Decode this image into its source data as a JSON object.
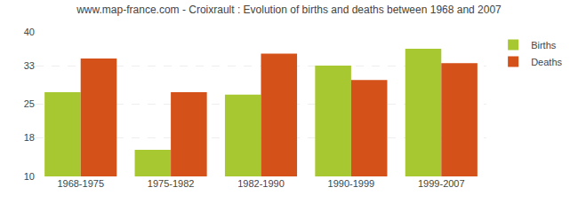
{
  "chart_data": {
    "type": "bar",
    "title": "www.map-france.com - Croixrault : Evolution of births and deaths between 1968 and 2007",
    "categories": [
      "1968-1975",
      "1975-1982",
      "1982-1990",
      "1990-1999",
      "1999-2007"
    ],
    "series": [
      {
        "name": "Births",
        "color": "#a8c832",
        "values": [
          27.5,
          15.5,
          27.0,
          33.0,
          36.5
        ]
      },
      {
        "name": "Deaths",
        "color": "#d4511a",
        "values": [
          34.5,
          27.5,
          35.5,
          30.0,
          33.5
        ]
      }
    ],
    "ylim": [
      10,
      40
    ],
    "yticks": [
      10,
      18,
      25,
      33,
      40
    ],
    "grid": true,
    "legend": "upper right"
  }
}
